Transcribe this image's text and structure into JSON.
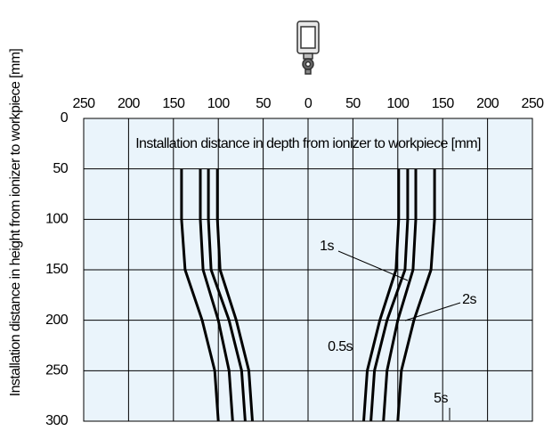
{
  "chart_data": {
    "type": "line",
    "title": "Installation distance in depth from ionizer to workpiece [mm]",
    "y_label": "Installation distance in height from ionizer to workpiece [mm]",
    "xlim": [
      -250,
      250
    ],
    "xticks": [
      {
        "value": -250,
        "label": "250"
      },
      {
        "value": -200,
        "label": "200"
      },
      {
        "value": -150,
        "label": "150"
      },
      {
        "value": -100,
        "label": "100"
      },
      {
        "value": -50,
        "label": "50"
      },
      0,
      50,
      100,
      150,
      200,
      250
    ],
    "ylim": [
      0,
      300
    ],
    "yticks": [
      0,
      50,
      100,
      150,
      200,
      250,
      300
    ],
    "y_inverted": true,
    "grid": true,
    "series": [
      {
        "name": "0.5s",
        "color": "#000000",
        "x": [
          -101,
          -101,
          -98,
          -80,
          -66,
          -62,
          null,
          101,
          101,
          98,
          80,
          66,
          62
        ],
        "y": [
          50,
          100,
          150,
          200,
          250,
          300,
          null,
          50,
          100,
          150,
          200,
          250,
          300
        ]
      },
      {
        "name": "1s",
        "color": "#000000",
        "x": [
          -111,
          -111,
          -108,
          -88,
          -74,
          -70,
          null,
          111,
          111,
          108,
          88,
          74,
          70
        ],
        "y": [
          50,
          100,
          150,
          200,
          250,
          300,
          null,
          50,
          100,
          150,
          200,
          250,
          300
        ]
      },
      {
        "name": "2s",
        "color": "#000000",
        "x": [
          -120,
          -120,
          -117,
          -100,
          -88,
          -84,
          null,
          120,
          120,
          117,
          100,
          88,
          84
        ],
        "y": [
          50,
          100,
          150,
          200,
          250,
          300,
          null,
          50,
          100,
          150,
          200,
          250,
          300
        ]
      },
      {
        "name": "5s",
        "color": "#000000",
        "x": [
          -141,
          -141,
          -137,
          -118,
          -104,
          -100,
          null,
          141,
          141,
          137,
          118,
          104,
          100
        ],
        "y": [
          50,
          100,
          150,
          200,
          250,
          300,
          null,
          50,
          100,
          150,
          200,
          250,
          300
        ]
      }
    ]
  }
}
